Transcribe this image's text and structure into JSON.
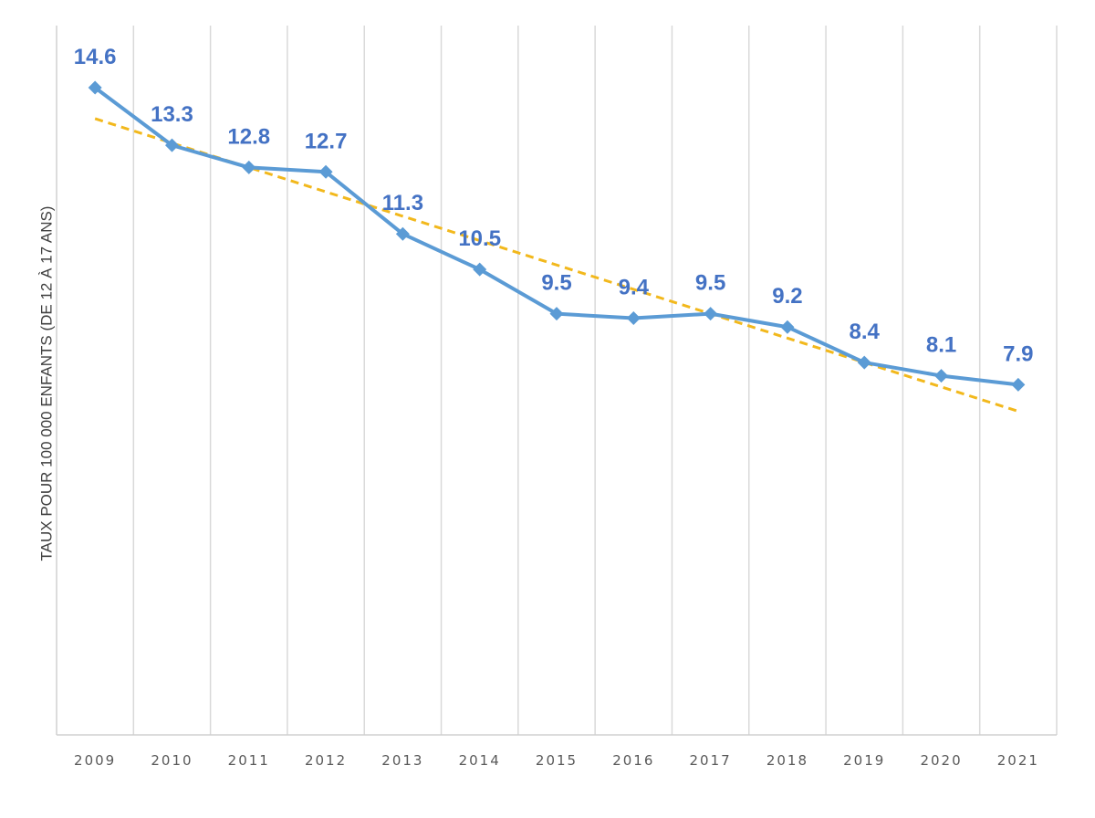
{
  "chart_data": {
    "type": "line",
    "title": "",
    "xlabel": "",
    "ylabel": "TAUX POUR 100 000 ENFANTS (DE 12 À 17 ANS)",
    "categories": [
      "2009",
      "2010",
      "2011",
      "2012",
      "2013",
      "2014",
      "2015",
      "2016",
      "2017",
      "2018",
      "2019",
      "2020",
      "2021"
    ],
    "series": [
      {
        "values": [
          14.6,
          13.3,
          12.8,
          12.7,
          11.3,
          10.5,
          9.5,
          9.4,
          9.5,
          9.2,
          8.4,
          8.1,
          7.9
        ],
        "data_labels": [
          "14.6",
          "13.3",
          "12.8",
          "12.7",
          "11.3",
          "10.5",
          "9.5",
          "9.4",
          "9.5",
          "9.2",
          "8.4",
          "8.1",
          "7.9"
        ],
        "color": "#5b9bd5",
        "label_color": "#4472c4",
        "marker": "diamond"
      }
    ],
    "trendline": {
      "type": "linear",
      "color": "#f2b81c",
      "style": "dashed",
      "start": 13.9,
      "end": 7.3
    },
    "ylim": [
      0,
      16
    ],
    "grid": "vertical",
    "legend": "none",
    "y_ticks_shown": false
  }
}
